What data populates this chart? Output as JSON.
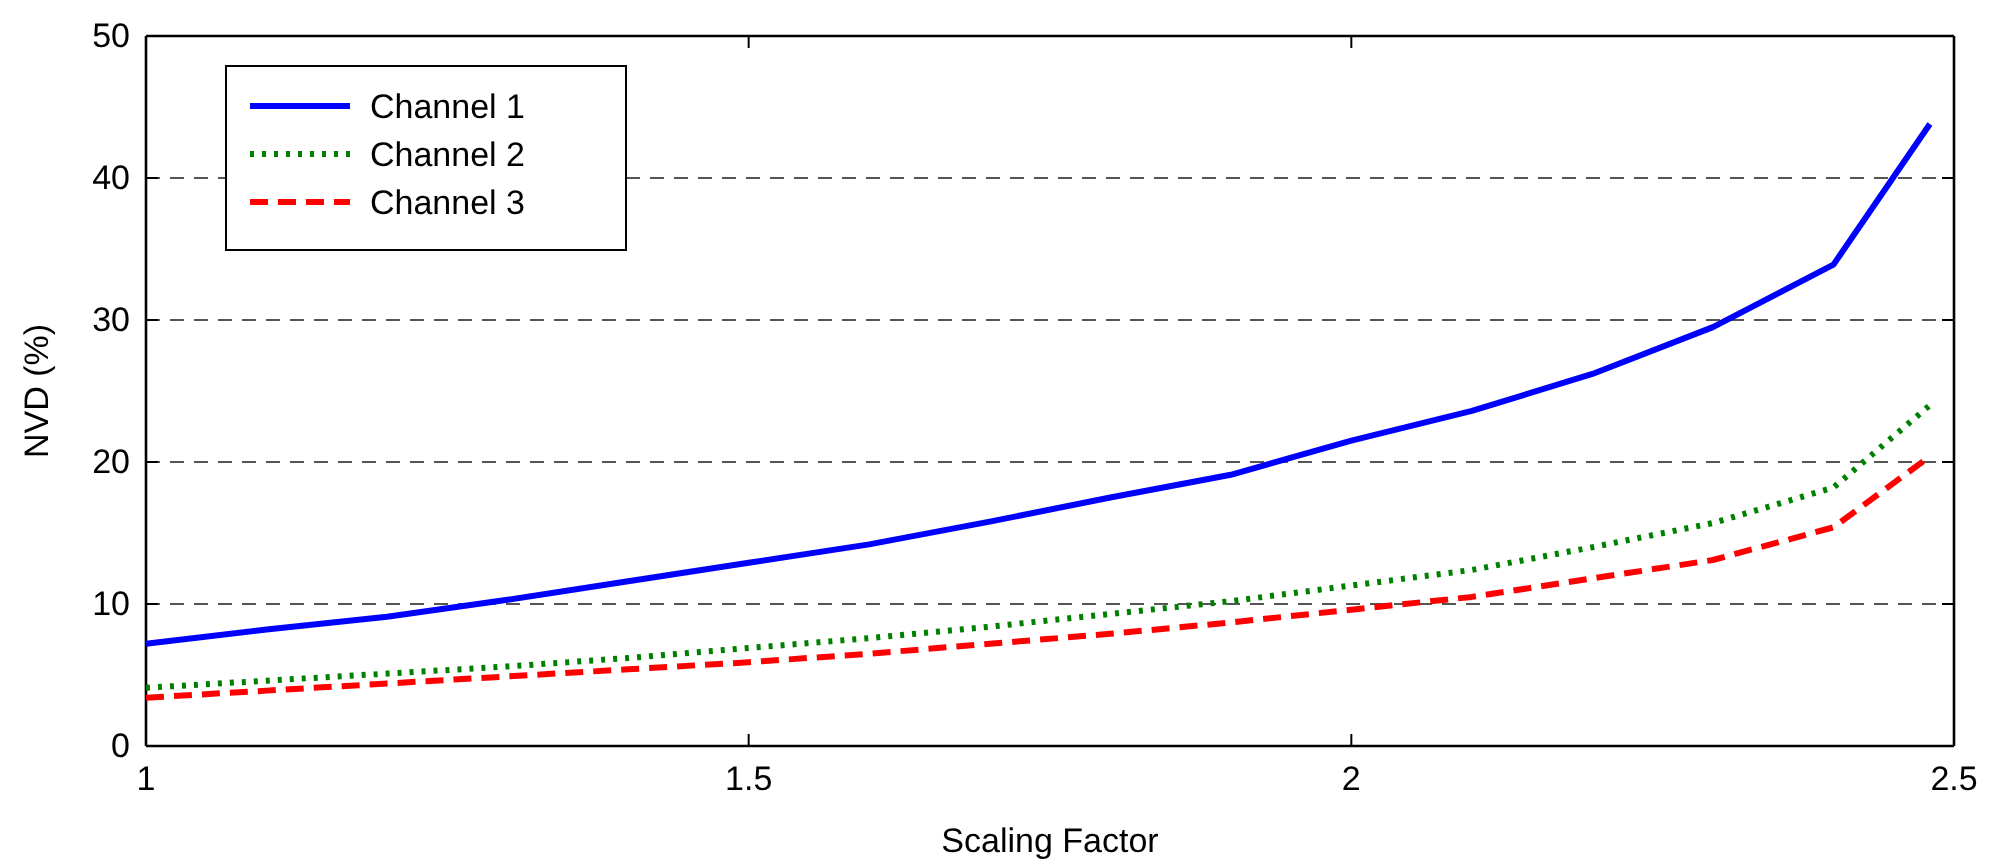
{
  "chart_data": {
    "type": "line",
    "xlabel": "Scaling Factor",
    "ylabel": "NVD (%)",
    "x": [
      1,
      1.1,
      1.2,
      1.3,
      1.4,
      1.5,
      1.6,
      1.7,
      1.8,
      1.9,
      2.0,
      2.1,
      2.2,
      2.3,
      2.4,
      2.48
    ],
    "series": [
      {
        "name": "Channel 1",
        "color": "#0000ff",
        "line_style": "solid",
        "values": [
          7.2,
          8.2,
          9.1,
          10.3,
          11.6,
          12.9,
          14.2,
          15.8,
          17.5,
          19.1,
          21.5,
          23.6,
          26.2,
          29.5,
          33.9,
          43.8
        ]
      },
      {
        "name": "Channel 2",
        "color": "#008000",
        "line_style": "dotted",
        "values": [
          4.1,
          4.6,
          5.1,
          5.6,
          6.2,
          6.9,
          7.6,
          8.4,
          9.3,
          10.2,
          11.3,
          12.4,
          14.0,
          15.7,
          18.2,
          24.0
        ]
      },
      {
        "name": "Channel 3",
        "color": "#ff0000",
        "line_style": "dashed",
        "values": [
          3.4,
          3.9,
          4.4,
          4.9,
          5.4,
          5.9,
          6.5,
          7.2,
          7.9,
          8.7,
          9.6,
          10.5,
          11.8,
          13.1,
          15.4,
          20.4
        ]
      }
    ],
    "xlim": [
      1,
      2.5
    ],
    "xticks": [
      1,
      1.5,
      2,
      2.5
    ],
    "ylim": [
      0,
      50
    ],
    "yticks": [
      0,
      10,
      20,
      30,
      40,
      50
    ],
    "grid": "y",
    "legend": "top left"
  }
}
